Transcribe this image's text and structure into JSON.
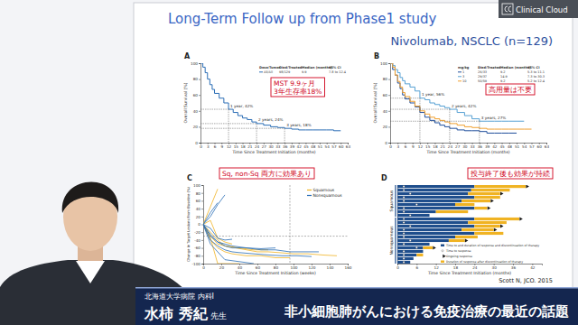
{
  "slide": {
    "title": "Long-Term Follow up from Phase1 study",
    "subtitle": "Nivolumab, NSCLC (n=129)",
    "citation": "Scott N, JCO. 2015",
    "brand": "Clinical Cloud"
  },
  "caption": {
    "affiliation": "北海道大学病院 内科Ⅰ",
    "speaker": "水柿 秀紀",
    "honorific": "先生",
    "topic": "非小細胞肺がんにおける免疫治療の最近の話題"
  },
  "chart_data": [
    {
      "type": "line",
      "title": "A",
      "line_style": "step",
      "x_label": "Time Since Treatment Initiation (months)",
      "y_label": "Overall Survival (%)",
      "x": [
        0,
        1,
        2,
        3,
        4,
        5,
        6,
        8,
        10,
        12,
        14,
        16,
        18,
        20,
        22,
        24,
        27,
        30,
        33,
        36,
        39,
        42,
        45,
        48,
        51,
        54,
        57,
        60
      ],
      "series": [
        {
          "name": "All/All",
          "color": "#2a6db5",
          "values": [
            100,
            95,
            88,
            80,
            73,
            67,
            62,
            56,
            50,
            42,
            38,
            34,
            31,
            29,
            26,
            24,
            22,
            20,
            19,
            18,
            17,
            16,
            16,
            16,
            16,
            16,
            15,
            15
          ]
        }
      ],
      "legend_table": {
        "header": [
          "Dose/Tumor",
          "Died/Treated",
          "Median (months)",
          "95% CI"
        ],
        "rows": [
          [
            "98/129",
            "9.9",
            "7.8 to 12.4"
          ]
        ]
      },
      "annotations": [
        {
          "text": "1 year, 42%",
          "x": 12,
          "y": 42
        },
        {
          "text": "2 years, 24%",
          "x": 24,
          "y": 24
        },
        {
          "text": "3 years, 18%",
          "x": 36,
          "y": 18
        }
      ],
      "callouts": [
        "MST 9.9ヶ月",
        "3年生存率18%"
      ],
      "xlim": [
        0,
        63
      ],
      "ylim": [
        0,
        100
      ],
      "xticks": [
        0,
        3,
        6,
        9,
        12,
        15,
        18,
        21,
        24,
        27,
        30,
        33,
        36,
        39,
        42,
        45,
        48,
        51,
        54,
        57,
        60,
        63
      ],
      "yticks": [
        0,
        20,
        40,
        60,
        80,
        100
      ]
    },
    {
      "type": "line",
      "title": "B",
      "line_style": "step",
      "x_label": "Time Since Treatment Initiation (months)",
      "y_label": "Overall Survival (%)",
      "x": [
        0,
        1,
        2,
        3,
        4,
        5,
        6,
        8,
        10,
        12,
        14,
        16,
        18,
        20,
        22,
        24,
        27,
        30,
        33,
        36,
        39,
        42,
        45,
        48,
        51,
        54,
        57,
        60
      ],
      "series": [
        {
          "name": "1",
          "color": "#1f4e9c",
          "values": [
            100,
            92,
            85,
            75,
            68,
            60,
            55,
            50,
            45,
            38,
            32,
            28,
            25,
            22,
            20,
            18,
            16,
            15,
            15,
            14,
            12,
            12,
            12,
            12,
            12,
            null,
            null,
            null
          ]
        },
        {
          "name": "3",
          "color": "#56a0d3",
          "values": [
            100,
            97,
            92,
            88,
            82,
            78,
            74,
            70,
            65,
            56,
            54,
            50,
            48,
            46,
            44,
            42,
            38,
            34,
            30,
            27,
            27,
            27,
            27,
            27,
            27,
            27,
            null,
            null
          ]
        },
        {
          "name": "10",
          "color": "#f0a030",
          "values": [
            100,
            95,
            85,
            77,
            70,
            63,
            58,
            52,
            46,
            40,
            36,
            32,
            30,
            28,
            26,
            24,
            22,
            20,
            19,
            18,
            17,
            17,
            17,
            17,
            17,
            17,
            17,
            null
          ]
        }
      ],
      "legend_table": {
        "header": [
          "mg/kg",
          "Died/Treated",
          "Median (months)",
          "95% CI"
        ],
        "rows": [
          [
            "26/33",
            "9.2",
            "5.3 to 11.1"
          ],
          [
            "29/37",
            "14.9",
            "7.3 to 30.3"
          ],
          [
            "50/59",
            "9.2",
            "5.2 to 12.4"
          ]
        ]
      },
      "annotations": [
        {
          "text": "1 year, 56%",
          "x": 12,
          "y": 56
        },
        {
          "text": "2 years, 42%",
          "x": 24,
          "y": 42
        },
        {
          "text": "3 years, 27%",
          "x": 36,
          "y": 27
        }
      ],
      "callouts": [
        "高用量は不要"
      ],
      "xlim": [
        0,
        63
      ],
      "ylim": [
        0,
        100
      ],
      "xticks": [
        0,
        3,
        6,
        9,
        12,
        15,
        18,
        21,
        24,
        27,
        30,
        33,
        36,
        39,
        42,
        45,
        48,
        51,
        54,
        57,
        60,
        63
      ],
      "yticks": [
        0,
        20,
        40,
        60,
        80,
        100
      ]
    },
    {
      "type": "line",
      "title": "C",
      "x_label": "Time Since Treatment Initiation (weeks)",
      "y_label": "Change in Target Lesions From Baseline (%)",
      "series": [
        {
          "name": "Squamous",
          "color": "#f0b323",
          "lines": [
            {
              "x": [
                0,
                8,
                16,
                24,
                32,
                48,
                64,
                80,
                96
              ],
              "values": [
                0,
                -40,
                -60,
                -70,
                -75,
                -80,
                -80,
                -85,
                -85
              ]
            },
            {
              "x": [
                0,
                8,
                16,
                24,
                40,
                56,
                72
              ],
              "values": [
                0,
                -30,
                -50,
                -55,
                -60,
                -65,
                -65
              ]
            },
            {
              "x": [
                0,
                8,
                16,
                24,
                32
              ],
              "values": [
                0,
                10,
                -35,
                -45,
                -50
              ]
            },
            {
              "x": [
                0,
                8,
                16,
                24,
                36,
                48,
                60,
                72,
                84,
                100,
                116,
                132,
                148
              ],
              "values": [
                0,
                -20,
                -40,
                -55,
                -60,
                -65,
                -70,
                -70,
                -72,
                -75,
                -75,
                -78,
                -80
              ]
            },
            {
              "x": [
                0,
                8,
                16
              ],
              "values": [
                0,
                45,
                90
              ]
            },
            {
              "x": [
                0,
                8,
                16,
                24,
                40
              ],
              "values": [
                0,
                -35,
                -100,
                -100,
                -100
              ]
            }
          ]
        },
        {
          "name": "Nonsquamous",
          "color": "#2a6db5",
          "lines": [
            {
              "x": [
                0,
                8,
                16,
                24,
                32,
                48,
                64,
                80
              ],
              "values": [
                0,
                -25,
                -45,
                -50,
                -55,
                -60,
                -62,
                -60
              ]
            },
            {
              "x": [
                0,
                8,
                16,
                24
              ],
              "values": [
                0,
                20,
                50,
                75
              ]
            },
            {
              "x": [
                0,
                8,
                16,
                24,
                32,
                40,
                56,
                72,
                88,
                104,
                120
              ],
              "values": [
                0,
                -40,
                -55,
                -65,
                -70,
                -72,
                -75,
                -78,
                -80,
                -80,
                -82
              ]
            },
            {
              "x": [
                0,
                8,
                16,
                24,
                32
              ],
              "values": [
                0,
                -10,
                -35,
                -40,
                -38
              ]
            },
            {
              "x": [
                0,
                8,
                16,
                24,
                32,
                48,
                64,
                80,
                96,
                112,
                128
              ],
              "values": [
                0,
                -30,
                -45,
                -55,
                -60,
                -60,
                -65,
                -65,
                -70,
                -70,
                -70
              ]
            },
            {
              "x": [
                0,
                8,
                16
              ],
              "values": [
                0,
                30,
                55
              ]
            },
            {
              "x": [
                0,
                8,
                16,
                24,
                40,
                56
              ],
              "values": [
                0,
                -50,
                -70,
                -90,
                -95,
                -100
              ]
            }
          ]
        }
      ],
      "hlines": [
        -30
      ],
      "vlines": [
        96
      ],
      "callouts": [
        "Sq, non-Sq 両方に効果あり"
      ],
      "xlim": [
        0,
        160
      ],
      "ylim": [
        -100,
        100
      ],
      "xticks": [
        0,
        20,
        40,
        60,
        80,
        100,
        120,
        140,
        160
      ],
      "yticks": [
        -100,
        -80,
        -60,
        -40,
        -20,
        0,
        20,
        40,
        60,
        80,
        100
      ]
    },
    {
      "type": "bar",
      "title": "D",
      "orientation": "horizontal",
      "stacked": true,
      "tick_labels": "x",
      "x_label": "Time Since Treatment Initiation (months)",
      "categories": [
        null,
        null,
        null,
        null,
        null,
        null,
        null,
        null,
        null,
        null,
        null,
        null,
        null,
        null,
        null,
        null,
        null,
        null,
        null,
        null,
        null,
        null
      ],
      "groups": [
        {
          "label": "Squamous",
          "count": 9
        },
        {
          "label": "Nonsquamous",
          "count": 13
        }
      ],
      "series": [
        {
          "name": "Time to and duration of response and discontinuation of therapy",
          "color": "#1f4e8c",
          "values": [
            24,
            23,
            22,
            24,
            20,
            18,
            24,
            12,
            10,
            24,
            22,
            24,
            20,
            24,
            18,
            16,
            10,
            8,
            8,
            6,
            5,
            4
          ]
        },
        {
          "name": "Time to response",
          "type": "scatter",
          "marker": "circle",
          "color": "#ffffff",
          "values": [
            2,
            2,
            4,
            2,
            2,
            6,
            2,
            2,
            4,
            2,
            2,
            4,
            2,
            2,
            2,
            4,
            2,
            6,
            2,
            2,
            2,
            2
          ]
        },
        {
          "name": "Ongoing response",
          "type": "scatter",
          "marker": "triangle",
          "color": "#1a1a1a",
          "values": [
            40,
            null,
            32,
            null,
            29,
            null,
            28,
            null,
            null,
            38,
            null,
            32,
            30,
            null,
            null,
            21,
            null,
            11,
            null,
            null,
            null,
            null
          ]
        },
        {
          "name": "Duration of response after discontinuation of therapy",
          "color": "#f0b323",
          "values": [
            16,
            12,
            10,
            8,
            9,
            6,
            4,
            10,
            0,
            14,
            12,
            8,
            10,
            9,
            7,
            5,
            0,
            3,
            0,
            2,
            0,
            0
          ]
        }
      ],
      "callouts": [
        "投与終了後も効果が持続"
      ],
      "xlim": [
        0,
        45
      ],
      "xticks": [
        0,
        6,
        12,
        18,
        24,
        30,
        36,
        42
      ]
    }
  ]
}
